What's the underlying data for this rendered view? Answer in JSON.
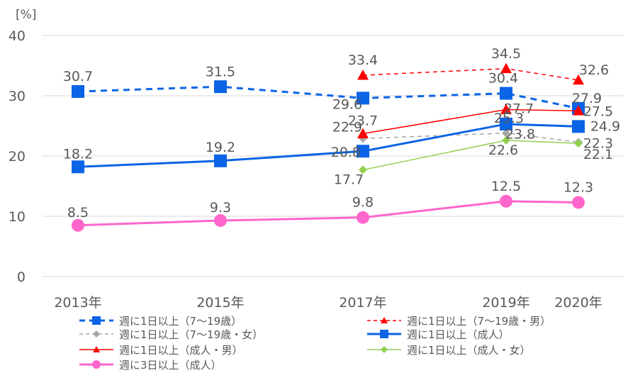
{
  "chart_data": {
    "type": "line",
    "unit_label": "[%]",
    "categories": [
      "2013年",
      "2015年",
      "2017年",
      "2019年",
      "2020年"
    ],
    "ylim": [
      0,
      40
    ],
    "yticks": [
      0,
      10,
      20,
      30,
      40
    ],
    "grid": true,
    "legend_position": "bottom",
    "series": [
      {
        "name": "週に1日以上（7～19歳）",
        "values": [
          30.7,
          31.5,
          29.6,
          30.4,
          27.9
        ],
        "color": "#0b64e6",
        "dash": "dashed",
        "marker": "square",
        "labels": [
          "30.7",
          "31.5",
          "29.6",
          "30.4",
          "27.9"
        ]
      },
      {
        "name": "週に1日以上（7～19歳・男）",
        "values": [
          null,
          null,
          33.4,
          34.5,
          32.6
        ],
        "color": "#ff0000",
        "dash": "dashed",
        "marker": "triangle",
        "labels": [
          "",
          "",
          "33.4",
          "34.5",
          "32.6"
        ]
      },
      {
        "name": "週に1日以上（7～19歳・女）",
        "values": [
          null,
          null,
          22.9,
          23.8,
          22.3
        ],
        "color": "#a6a6a6",
        "dash": "dashed",
        "marker": "diamond",
        "labels": [
          "",
          "",
          "22.9",
          "23.8",
          "22.3"
        ]
      },
      {
        "name": "週に1日以上（成人）",
        "values": [
          18.2,
          19.2,
          20.8,
          25.3,
          24.9
        ],
        "color": "#0b64e6",
        "dash": "solid",
        "marker": "square",
        "labels": [
          "18.2",
          "19.2",
          "20.8",
          "25.3",
          "24.9"
        ]
      },
      {
        "name": "週に1日以上（成人・男）",
        "values": [
          null,
          null,
          23.7,
          27.7,
          27.5
        ],
        "color": "#ff0000",
        "dash": "solid",
        "marker": "triangle",
        "labels": [
          "",
          "",
          "23.7",
          "27.7",
          "27.5"
        ]
      },
      {
        "name": "週に1日以上（成人・女）",
        "values": [
          null,
          null,
          17.7,
          22.6,
          22.1
        ],
        "color": "#92d050",
        "dash": "solid",
        "marker": "diamond",
        "labels": [
          "",
          "",
          "17.7",
          "22.6",
          "22.1"
        ]
      },
      {
        "name": "週に3日以上（成人）",
        "values": [
          8.5,
          9.3,
          9.8,
          12.5,
          12.3
        ],
        "color": "#ff66cc",
        "dash": "solid",
        "marker": "circle",
        "labels": [
          "8.5",
          "9.3",
          "9.8",
          "12.5",
          "12.3"
        ]
      }
    ]
  }
}
